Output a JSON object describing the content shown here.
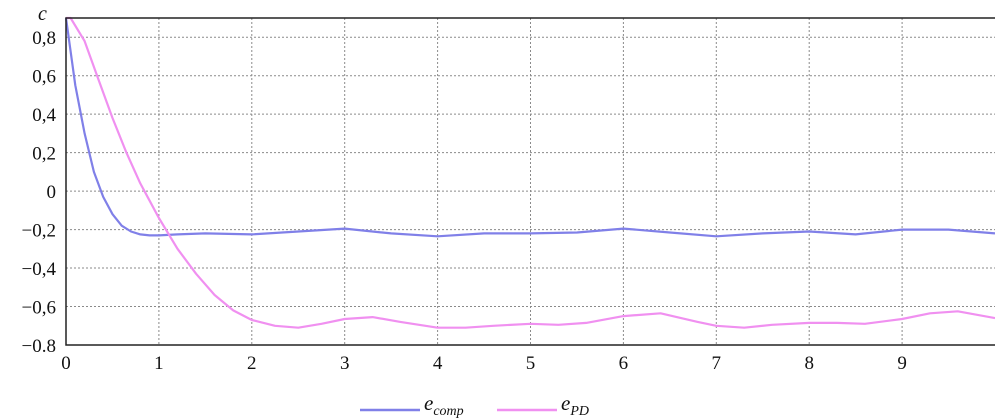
{
  "chart_data": {
    "type": "line",
    "ylabel": "c",
    "xlim": [
      0,
      10
    ],
    "ylim": [
      -0.8,
      0.9
    ],
    "grid": true,
    "legend_position": "bottom",
    "x_ticks": [
      0,
      1,
      2,
      3,
      4,
      5,
      6,
      7,
      8,
      9
    ],
    "x_tick_labels": [
      "0",
      "1",
      "2",
      "3",
      "4",
      "5",
      "6",
      "7",
      "8",
      "9"
    ],
    "y_ticks": [
      0.8,
      0.6,
      0.4,
      0.2,
      0,
      -0.2,
      -0.4,
      -0.6,
      -0.8
    ],
    "y_tick_labels": [
      "0,8",
      "0,6",
      "0,4",
      "0,2",
      "0",
      "−0,2",
      "−0,4",
      "−0,6",
      "−0.8"
    ],
    "series": [
      {
        "name": "e_comp",
        "legend_base": "e",
        "legend_sub": "comp",
        "color": "#8080e8",
        "x": [
          0,
          0.1,
          0.2,
          0.3,
          0.4,
          0.5,
          0.6,
          0.7,
          0.8,
          0.9,
          1.0,
          1.2,
          1.5,
          2.0,
          2.5,
          3.0,
          3.5,
          4.0,
          4.5,
          5.0,
          5.5,
          6.0,
          6.5,
          7.0,
          7.5,
          8.0,
          8.5,
          9.0,
          9.5,
          10.0
        ],
        "y": [
          0.9,
          0.55,
          0.3,
          0.1,
          -0.03,
          -0.12,
          -0.18,
          -0.21,
          -0.225,
          -0.23,
          -0.23,
          -0.225,
          -0.22,
          -0.225,
          -0.21,
          -0.195,
          -0.22,
          -0.235,
          -0.22,
          -0.22,
          -0.215,
          -0.195,
          -0.215,
          -0.235,
          -0.22,
          -0.21,
          -0.225,
          -0.2,
          -0.2,
          -0.22
        ]
      },
      {
        "name": "e_PD",
        "legend_base": "e",
        "legend_sub": "PD",
        "color": "#f090f0",
        "x": [
          0,
          0.05,
          0.2,
          0.35,
          0.5,
          0.65,
          0.8,
          0.9,
          1.0,
          1.2,
          1.4,
          1.6,
          1.8,
          2.0,
          2.25,
          2.5,
          2.75,
          3.0,
          3.3,
          3.6,
          4.0,
          4.3,
          4.6,
          5.0,
          5.3,
          5.6,
          6.0,
          6.4,
          6.8,
          7.0,
          7.3,
          7.6,
          8.0,
          8.3,
          8.6,
          9.0,
          9.3,
          9.6,
          10.0
        ],
        "y": [
          0.9,
          0.9,
          0.78,
          0.58,
          0.38,
          0.2,
          0.04,
          -0.05,
          -0.14,
          -0.3,
          -0.43,
          -0.54,
          -0.62,
          -0.67,
          -0.7,
          -0.71,
          -0.69,
          -0.665,
          -0.655,
          -0.68,
          -0.71,
          -0.71,
          -0.7,
          -0.69,
          -0.695,
          -0.685,
          -0.65,
          -0.635,
          -0.68,
          -0.7,
          -0.71,
          -0.695,
          -0.685,
          -0.685,
          -0.69,
          -0.665,
          -0.635,
          -0.625,
          -0.66
        ]
      }
    ]
  }
}
